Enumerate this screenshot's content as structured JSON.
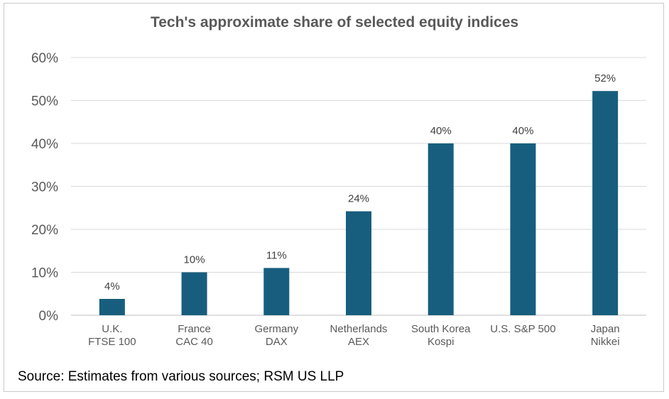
{
  "chart_data": {
    "type": "bar",
    "title": "Tech's approximate share of selected equity indices",
    "categories": [
      [
        "U.K.",
        "FTSE 100"
      ],
      [
        "France",
        "CAC 40"
      ],
      [
        "Germany",
        "DAX"
      ],
      [
        "Netherlands",
        "AEX"
      ],
      [
        "South Korea",
        "Kospi"
      ],
      [
        "U.S. S&P 500"
      ],
      [
        "Japan",
        "Nikkei"
      ]
    ],
    "values": [
      3.8,
      10,
      11,
      24.2,
      40,
      40,
      52.2
    ],
    "data_labels": [
      "4%",
      "10%",
      "11%",
      "24%",
      "40%",
      "40%",
      "52%"
    ],
    "ylim": [
      0,
      60
    ],
    "yticks": [
      0,
      10,
      20,
      30,
      40,
      50,
      60
    ],
    "ytick_labels": [
      "0%",
      "10%",
      "20%",
      "30%",
      "40%",
      "50%",
      "60%"
    ],
    "xlabel": "",
    "ylabel": "",
    "grid": true,
    "legend": "none",
    "colors": {
      "bar": "#175e7e",
      "grid": "#d9d9d9",
      "axis": "#bfbfbf"
    }
  },
  "source_note": "Source: Estimates from various sources; RSM US LLP"
}
